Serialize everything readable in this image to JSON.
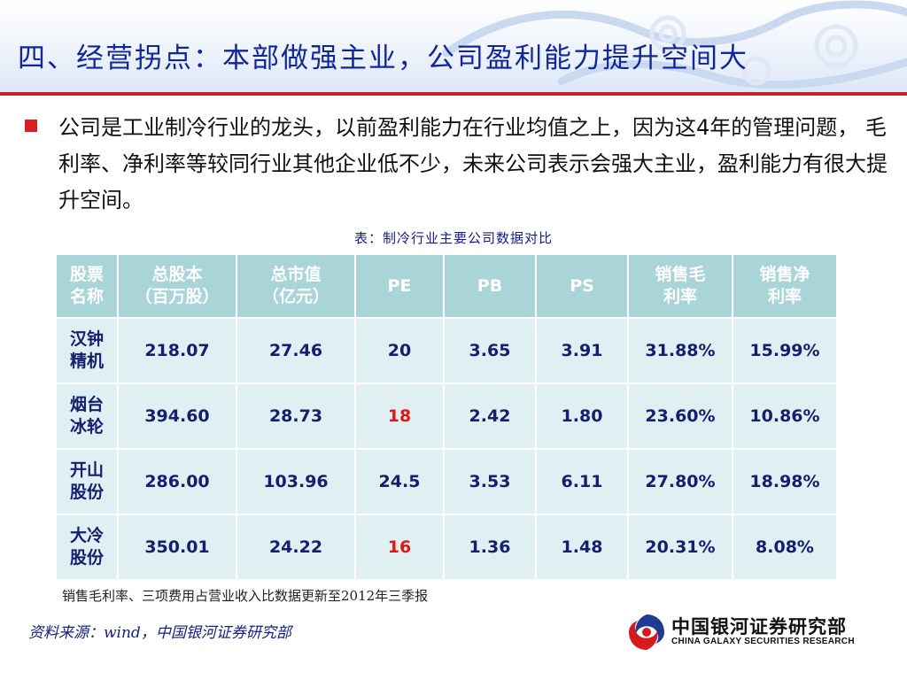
{
  "slide": {
    "title": "四、经营拐点：本部做强主业，公司盈利能力提升空间大",
    "bullet": "公司是工业制冷行业的龙头，以前盈利能力在行业均值之上，因为这4年的管理问题， 毛利率、净利率等较同行业其他企业低不少，未来公司表示会强大主业，盈利能力有很大提升空间。",
    "table_caption": "表：制冷行业主要公司数据对比",
    "table": {
      "headers": [
        [
          "股票",
          "名称"
        ],
        [
          "总股本",
          "（百万股）"
        ],
        [
          "总市值",
          "（亿元）"
        ],
        [
          "PE"
        ],
        [
          "PB"
        ],
        [
          "PS"
        ],
        [
          "销售毛",
          "利率"
        ],
        [
          "销售净",
          "利率"
        ]
      ],
      "rows": [
        {
          "name": [
            "汉钟",
            "精机"
          ],
          "values": [
            "218.07",
            "27.46",
            "20",
            "3.65",
            "3.91",
            "31.88%",
            "15.99%"
          ]
        },
        {
          "name": [
            "烟台",
            "冰轮"
          ],
          "values": [
            "394.60",
            "28.73",
            "18",
            "2.42",
            "1.80",
            "23.60%",
            "10.86%"
          ]
        },
        {
          "name": [
            "开山",
            "股份"
          ],
          "values": [
            "286.00",
            "103.96",
            "24.5",
            "3.53",
            "6.11",
            "27.80%",
            "18.98%"
          ]
        },
        {
          "name": [
            "大冷",
            "股份"
          ],
          "values": [
            "350.01",
            "24.22",
            "16",
            "1.36",
            "1.48",
            "20.31%",
            "8.08%"
          ]
        }
      ],
      "highlighted_pe_color": "#e01515",
      "highlighted_rows": [
        1,
        3
      ]
    },
    "note": "销售毛利率、三项费用占营业收入比数据更新至2012年三季报",
    "source": "资料来源：wind，中国银河证券研究部",
    "logo": {
      "cn": "中国银河证券研究部",
      "en": "CHINA GALAXY SECURITIES RESEARCH",
      "icon": "galaxy-swirl-logo-icon"
    }
  },
  "colors": {
    "title": "#10269c",
    "rule": "#c2202a",
    "header_bg": "#a9d4d8",
    "cell_bg": "#e0eff1",
    "cell_text": "#14206e",
    "bullet": "#d91f26"
  }
}
